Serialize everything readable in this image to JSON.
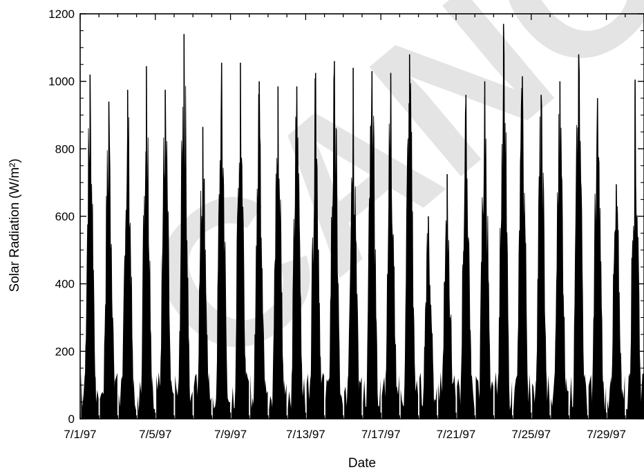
{
  "watermark": "CANO",
  "chart_data": {
    "type": "line",
    "title": "",
    "xlabel": "Date",
    "ylabel": "Solar Radiation (W/m²)",
    "xlim": [
      "7/1/97",
      "7/31/97"
    ],
    "ylim": [
      0,
      1200
    ],
    "x_ticks": [
      "7/1/97",
      "7/5/97",
      "7/9/97",
      "7/13/97",
      "7/17/97",
      "7/21/97",
      "7/25/97",
      "7/29/97"
    ],
    "y_ticks": [
      0,
      200,
      400,
      600,
      800,
      1000,
      1200
    ],
    "grid": false,
    "legend": "none",
    "series": [
      {
        "values_description_free": true,
        "x": [
          "7/1/97",
          "7/2/97",
          "7/3/97",
          "7/4/97",
          "7/5/97",
          "7/6/97",
          "7/7/97",
          "7/8/97",
          "7/9/97",
          "7/10/97",
          "7/11/97",
          "7/12/97",
          "7/13/97",
          "7/14/97",
          "7/15/97",
          "7/16/97",
          "7/17/97",
          "7/18/97",
          "7/19/97",
          "7/20/97",
          "7/21/97",
          "7/22/97",
          "7/23/97",
          "7/24/97",
          "7/25/97",
          "7/26/97",
          "7/27/97",
          "7/28/97",
          "7/29/97",
          "7/30/97",
          "7/31/97"
        ],
        "values": [
          1020,
          940,
          975,
          1045,
          975,
          1140,
          865,
          1055,
          1055,
          1000,
          985,
          985,
          1025,
          1060,
          1040,
          1030,
          1025,
          1080,
          600,
          725,
          960,
          1000,
          1170,
          1015,
          960,
          1000,
          1080,
          950,
          695,
          1005,
          1005
        ]
      }
    ]
  }
}
